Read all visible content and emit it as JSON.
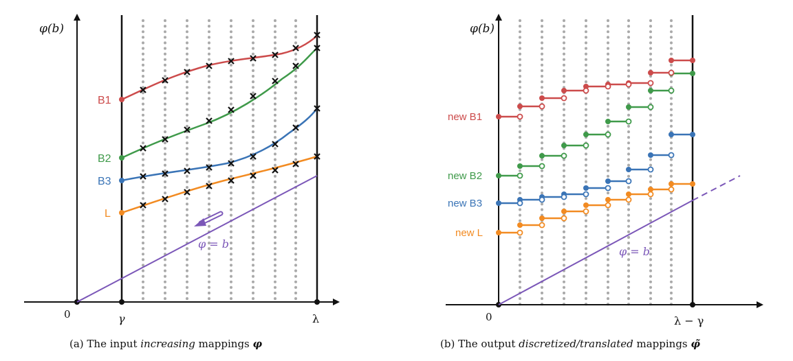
{
  "colors": {
    "B1": "#cc4b4b",
    "B2": "#3f9a4a",
    "B3": "#3a74b6",
    "L": "#f28b22",
    "diag": "#7b57b8",
    "axis": "#111111",
    "dotted": "#aaaaaa"
  },
  "left": {
    "y_axis_label": "φ(b)",
    "origin_label": "0",
    "gamma_label": "γ",
    "lambda_label": "λ",
    "series_labels": {
      "B1": "B1",
      "B2": "B2",
      "B3": "B3",
      "L": "L"
    },
    "diag_label": "φ = b",
    "caption_prefix": "(a)  The input ",
    "caption_em": "increasing",
    "caption_suffix": " mappings ",
    "caption_symbol": "φ"
  },
  "right": {
    "y_axis_label": "φ(b)",
    "origin_label": "0",
    "lambda_gamma_label": "λ − γ",
    "series_labels": {
      "B1": "new B1",
      "B2": "new B2",
      "B3": "new B3",
      "L": "new L"
    },
    "diag_label": "φ = b",
    "caption_prefix": "(b)  The output ",
    "caption_em": "discretized/translated",
    "caption_suffix": " mappings ",
    "caption_symbol": "φ̃"
  }
}
